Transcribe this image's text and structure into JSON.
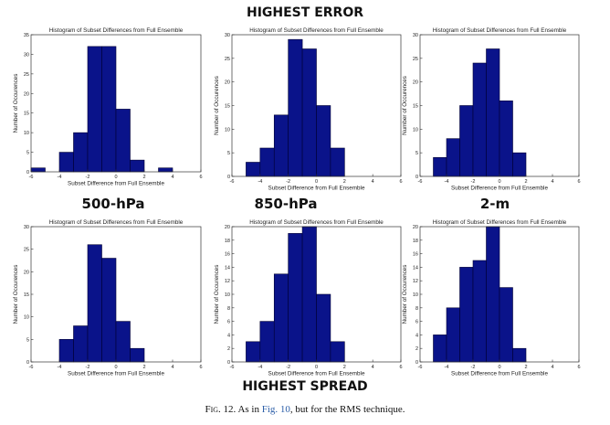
{
  "page": {
    "top_heading": "HIGHEST ERROR",
    "bottom_heading": "HIGHEST SPREAD",
    "column_headings": [
      "500-hPa",
      "850-hPa",
      "2-m"
    ],
    "caption": {
      "prefix": "Fig. 12.",
      "text_before_link": " As in ",
      "link": "Fig. 10",
      "text_after_link": ", but for the RMS technique."
    }
  },
  "colors": {
    "bar_fill": "#0a138a",
    "bar_edge": "#000033"
  },
  "chart_data": [
    {
      "type": "bar",
      "title": "Histogram of Subset Differences from Full Ensemble",
      "xlabel": "Subset Difference from Full Ensemble",
      "ylabel": "Number of Occurences",
      "xlim": [
        -6,
        6
      ],
      "ylim": [
        0,
        35
      ],
      "xticks": [
        -6,
        -4,
        -2,
        0,
        2,
        4,
        6
      ],
      "yticks": [
        0,
        5,
        10,
        15,
        20,
        25,
        30,
        35
      ],
      "bin_edges": [
        -6,
        -5,
        -4,
        -3,
        -2,
        -1,
        0,
        1,
        2,
        3,
        4,
        5
      ],
      "values": [
        1,
        0,
        5,
        10,
        32,
        32,
        16,
        3,
        0,
        1,
        0
      ]
    },
    {
      "type": "bar",
      "title": "Histogram of Subset Differences from Full Ensemble",
      "xlabel": "Subset Difference from Full Ensemble",
      "ylabel": "Number of Occurences",
      "xlim": [
        -6,
        6
      ],
      "ylim": [
        0,
        30
      ],
      "xticks": [
        -6,
        -4,
        -2,
        0,
        2,
        4,
        6
      ],
      "yticks": [
        0,
        5,
        10,
        15,
        20,
        25,
        30
      ],
      "bin_edges": [
        -5,
        -4,
        -3,
        -2,
        -1,
        0,
        1,
        2
      ],
      "values": [
        3,
        6,
        13,
        29,
        27,
        15,
        6
      ]
    },
    {
      "type": "bar",
      "title": "Histogram of Subset Differences from Full Ensemble",
      "xlabel": "Subset Difference from Full Ensemble",
      "ylabel": "Number of Occurences",
      "xlim": [
        -6,
        6
      ],
      "ylim": [
        0,
        30
      ],
      "xticks": [
        -6,
        -4,
        -2,
        0,
        2,
        4,
        6
      ],
      "yticks": [
        0,
        5,
        10,
        15,
        20,
        25,
        30
      ],
      "bin_edges": [
        -5,
        -4,
        -3,
        -2,
        -1,
        0,
        1,
        2
      ],
      "values": [
        4,
        8,
        15,
        24,
        27,
        16,
        5
      ]
    },
    {
      "type": "bar",
      "title": "Histogram of Subset Differences from Full Ensemble",
      "xlabel": "Subset Difference from Full Ensemble",
      "ylabel": "Number of Occurences",
      "xlim": [
        -6,
        6
      ],
      "ylim": [
        0,
        30
      ],
      "xticks": [
        -6,
        -4,
        -2,
        0,
        2,
        4,
        6
      ],
      "yticks": [
        0,
        5,
        10,
        15,
        20,
        25,
        30
      ],
      "bin_edges": [
        -4,
        -3,
        -2,
        -1,
        0,
        1,
        2
      ],
      "values": [
        5,
        8,
        26,
        23,
        9,
        3
      ]
    },
    {
      "type": "bar",
      "title": "Histogram of Subset Differences from Full Ensemble",
      "xlabel": "Subset Difference from Full Ensemble",
      "ylabel": "Number of Occurences",
      "xlim": [
        -6,
        6
      ],
      "ylim": [
        0,
        20
      ],
      "xticks": [
        -6,
        -4,
        -2,
        0,
        2,
        4,
        6
      ],
      "yticks": [
        0,
        2,
        4,
        6,
        8,
        10,
        12,
        14,
        16,
        18,
        20
      ],
      "bin_edges": [
        -5,
        -4,
        -3,
        -2,
        -1,
        0,
        1,
        2
      ],
      "values": [
        3,
        6,
        13,
        19,
        20,
        10,
        3
      ]
    },
    {
      "type": "bar",
      "title": "Histogram of Subset Differences from Full Ensemble",
      "xlabel": "Subset Difference from Full Ensemble",
      "ylabel": "Number of Occurences",
      "xlim": [
        -6,
        6
      ],
      "ylim": [
        0,
        20
      ],
      "xticks": [
        -6,
        -4,
        -2,
        0,
        2,
        4,
        6
      ],
      "yticks": [
        0,
        2,
        4,
        6,
        8,
        10,
        12,
        14,
        16,
        18,
        20
      ],
      "bin_edges": [
        -5,
        -4,
        -3,
        -2,
        -1,
        0,
        1,
        2
      ],
      "values": [
        4,
        8,
        14,
        15,
        20,
        11,
        2
      ]
    }
  ]
}
